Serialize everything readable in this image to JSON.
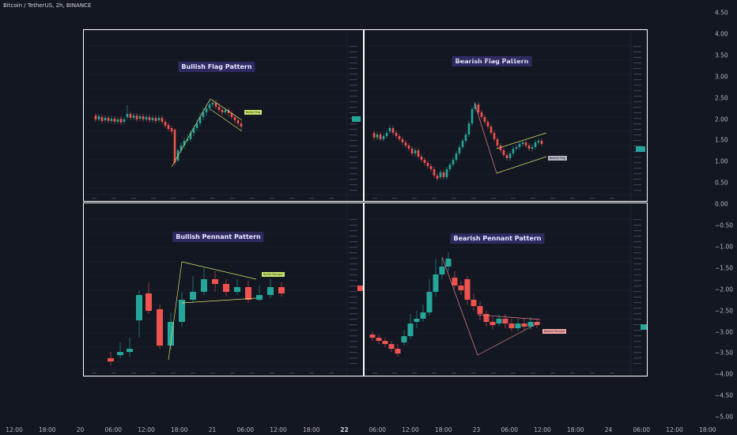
{
  "chart_title": "Bitcoin / TetherUS, 2h, BINANCE",
  "price_axis": [
    "4.50",
    "4.00",
    "3.50",
    "3.00",
    "2.50",
    "2.00",
    "1.50",
    "1.00",
    "0.50",
    "0.00",
    "−0.50",
    "−1.00",
    "−1.50",
    "−2.00",
    "−2.50",
    "−3.00",
    "−3.50",
    "−4.00",
    "−4.50",
    "−5.00"
  ],
  "time_axis": [
    {
      "label": "12:00",
      "bold": false
    },
    {
      "label": "18:00",
      "bold": false
    },
    {
      "label": "20",
      "bold": false
    },
    {
      "label": "06:00",
      "bold": false
    },
    {
      "label": "12:00",
      "bold": false
    },
    {
      "label": "18:00",
      "bold": false
    },
    {
      "label": "21",
      "bold": false
    },
    {
      "label": "06:00",
      "bold": false
    },
    {
      "label": "12:00",
      "bold": false
    },
    {
      "label": "18:00",
      "bold": false
    },
    {
      "label": "22",
      "bold": true
    },
    {
      "label": "06:00",
      "bold": false
    },
    {
      "label": "12:00",
      "bold": false
    },
    {
      "label": "18:00",
      "bold": false
    },
    {
      "label": "23",
      "bold": false
    },
    {
      "label": "06:00",
      "bold": false
    },
    {
      "label": "12:00",
      "bold": false
    },
    {
      "label": "18:00",
      "bold": false
    },
    {
      "label": "24",
      "bold": false
    },
    {
      "label": "06:00",
      "bold": false
    },
    {
      "label": "12:00",
      "bold": false
    },
    {
      "label": "18:00",
      "bold": false
    }
  ],
  "panels": {
    "bullish_flag": {
      "title": "Bullish Flag Pattern",
      "label": "Bullish Flag"
    },
    "bearish_flag": {
      "title": "Bearish Flag Pattern",
      "label": "Bearish Flag"
    },
    "bullish_pennant": {
      "title": "Bullish Pennant Pattern",
      "label": "Bullish Pennant"
    },
    "bearish_pennant": {
      "title": "Bearish Pennant Pattern",
      "label": "Bearish Pennant"
    }
  },
  "colors": {
    "up": "#26a69a",
    "down": "#ef5350",
    "pattern_line": "#d8e26b",
    "bearish_line": "#e8828a",
    "label_green": "#c8e66b",
    "label_red": "#f4a3a3",
    "label_gray": "#b2b5be",
    "title_bg": "#2e2b63"
  }
}
